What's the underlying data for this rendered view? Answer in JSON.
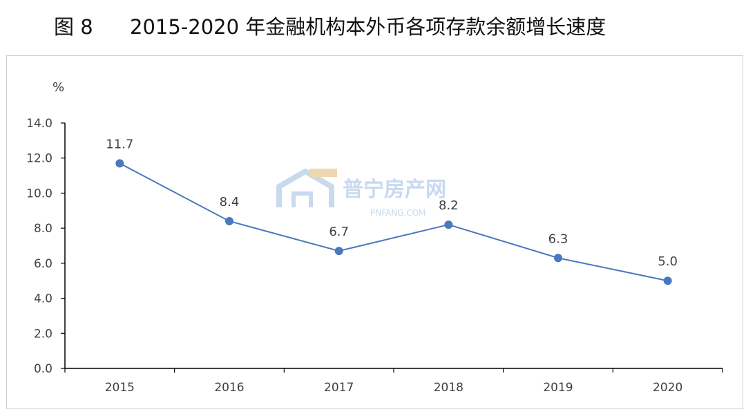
{
  "figure": {
    "label": "图 8",
    "title": "2015-2020 年金融机构本外币各项存款余额增长速度"
  },
  "watermark": {
    "name": "普宁房产网",
    "domain": "PNFANG.COM",
    "color": "#c9d9ee"
  },
  "chart_data": {
    "type": "line",
    "title": "",
    "xlabel": "",
    "ylabel": "%",
    "categories": [
      "2015",
      "2016",
      "2017",
      "2018",
      "2019",
      "2020"
    ],
    "series": [
      {
        "values": [
          11.7,
          8.4,
          6.7,
          8.2,
          6.3,
          5.0
        ],
        "data_labels": [
          "11.7",
          "8.4",
          "6.7",
          "8.2",
          "6.3",
          "5.0"
        ],
        "color": "#4a78bd"
      }
    ],
    "ylim": [
      0,
      14
    ],
    "y_ticks": [
      "0.0",
      "2.0",
      "4.0",
      "6.0",
      "8.0",
      "10.0",
      "12.0",
      "14.0"
    ],
    "grid": false,
    "legend": "none"
  }
}
